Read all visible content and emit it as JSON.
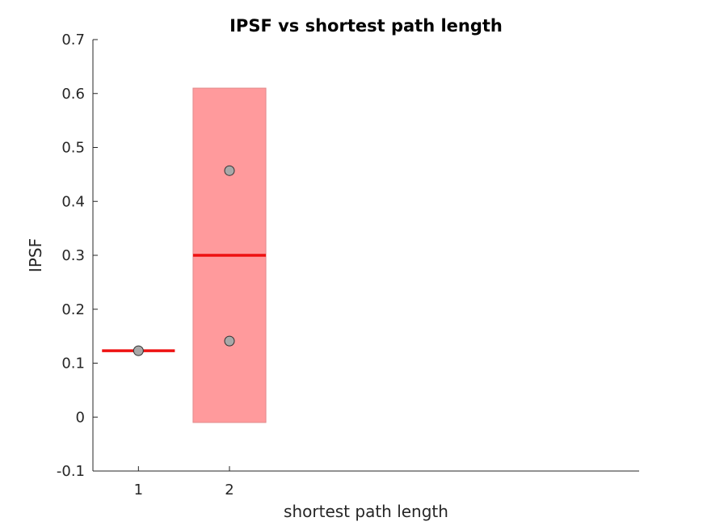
{
  "chart_data": {
    "type": "box",
    "title": "IPSF vs shortest path length",
    "xlabel": "shortest path length",
    "ylabel": "IPSF",
    "ylim": [
      -0.1,
      0.7
    ],
    "xlim": [
      0.5,
      6.5
    ],
    "yticks": [
      "-0.1",
      "0",
      "0.1",
      "0.2",
      "0.3",
      "0.4",
      "0.5",
      "0.6",
      "0.7"
    ],
    "xticks": [
      "1",
      "2"
    ],
    "grid": false,
    "groups": [
      {
        "x": 1,
        "mean": 0.123,
        "box": null,
        "points": [
          0.123
        ]
      },
      {
        "x": 2,
        "mean": 0.3,
        "box": [
          -0.01,
          0.61
        ],
        "points": [
          0.457,
          0.141
        ]
      }
    ],
    "colors": {
      "box_fill": "#ff9a9c",
      "box_edge": "#e08a8c",
      "mean_line": "#ee1111",
      "point_fill": "#a8a8a8",
      "point_edge": "#333333",
      "axis": "#262626"
    }
  }
}
